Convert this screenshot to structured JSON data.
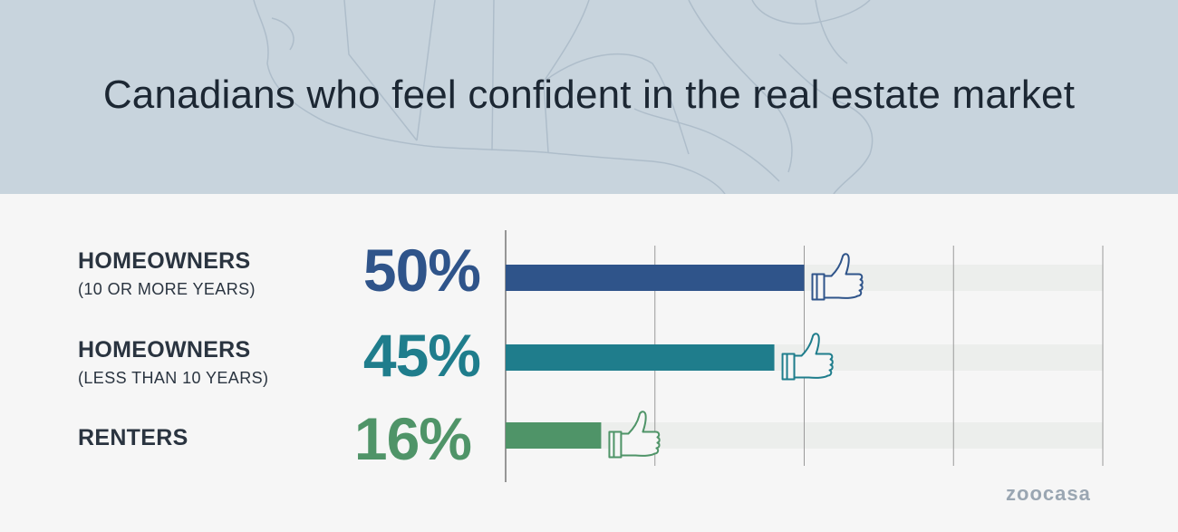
{
  "title": "Canadians who feel confident in the real estate market",
  "brand": "zoocasa",
  "colors": {
    "homeowners_10plus": "#2f548a",
    "homeowners_lt10": "#1f7d8c",
    "renters": "#4f9468",
    "track": "#eceeec",
    "grid": "#9a9a9a"
  },
  "rows": [
    {
      "label": "HOMEOWNERS",
      "sublabel": "(10 OR MORE YEARS)",
      "value_text": "50%"
    },
    {
      "label": "HOMEOWNERS",
      "sublabel": "(LESS THAN 10 YEARS)",
      "value_text": "45%"
    },
    {
      "label": "RENTERS",
      "sublabel": "",
      "value_text": "16%"
    }
  ],
  "chart_data": {
    "type": "bar",
    "orientation": "horizontal",
    "title": "Canadians who feel confident in the real estate market",
    "categories": [
      "HOMEOWNERS (10 OR MORE YEARS)",
      "HOMEOWNERS (LESS THAN 10 YEARS)",
      "RENTERS"
    ],
    "values": [
      50,
      45,
      16
    ],
    "xlim": [
      0,
      100
    ],
    "grid": true,
    "legend": "none"
  }
}
